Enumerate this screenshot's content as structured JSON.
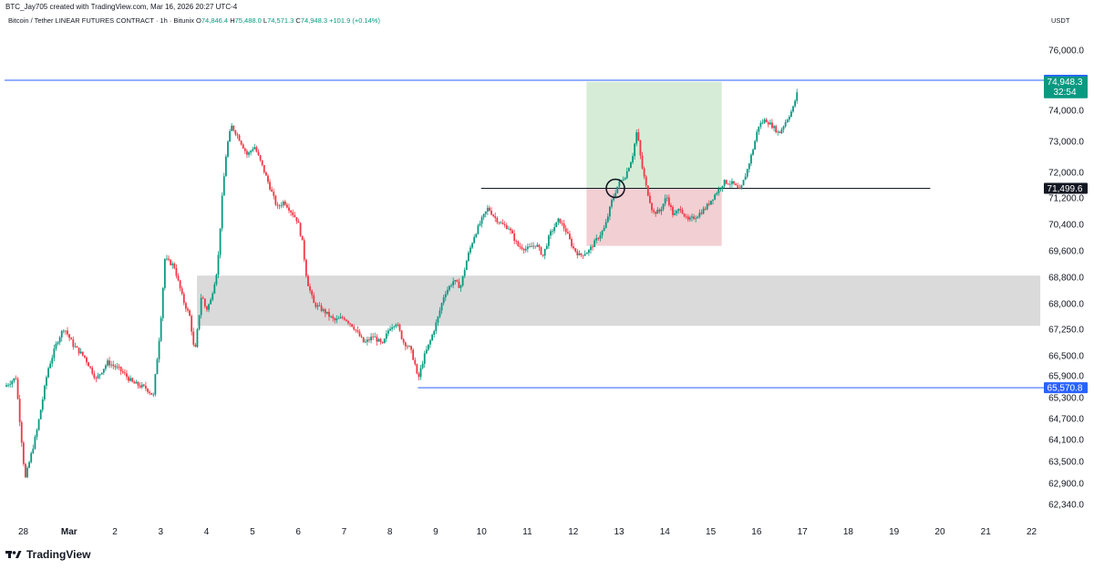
{
  "header": {
    "credit": "BTC_Jay705 created with TradingView.com, Mar 16, 2026 20:27 UTC-4",
    "symbol": "Bitcoin / Tether LINEAR FUTURES CONTRACT · 1h · Bitunix",
    "open_label": "O",
    "open": "74,846.4",
    "high_label": "H",
    "high": "75,488.0",
    "low_label": "L",
    "low": "74,571.3",
    "close_label": "C",
    "close": "74,948.3",
    "change": "+101.9 (+0.14%)",
    "currency": "USDT"
  },
  "brand": {
    "name": "TradingView",
    "icon": "tradingview-logo-icon"
  },
  "chart_data": {
    "type": "candlestick",
    "title": "",
    "xlabel": "",
    "ylabel": "USDT",
    "x_tick_labels": [
      "28",
      "Mar",
      "2",
      "3",
      "4",
      "5",
      "6",
      "7",
      "8",
      "9",
      "10",
      "11",
      "12",
      "13",
      "14",
      "15",
      "16",
      "17",
      "18",
      "19",
      "20",
      "21",
      "22"
    ],
    "y_tick_labels": [
      "76,000.0",
      "74,000.0",
      "73,000.0",
      "72,000.0",
      "71,200.0",
      "70,400.0",
      "69,600.0",
      "68,800.0",
      "68,000.0",
      "67,250.0",
      "66,500.0",
      "65,900.0",
      "65,300.0",
      "64,700.0",
      "64,100.0",
      "63,500.0",
      "62,900.0",
      "62,340.0"
    ],
    "price_levels": [
      {
        "label": "75,000.0",
        "value": 75000,
        "color": "#2962ff"
      },
      {
        "label": "71,499.6",
        "value": 71499.6,
        "color": "#131722"
      },
      {
        "label": "65,570.8",
        "value": 65570.8,
        "color": "#2962ff"
      }
    ],
    "last_price": {
      "label": "74,948.3",
      "countdown": "32:54",
      "color": "#089981"
    },
    "zones": [
      {
        "type": "demand",
        "from_day": 3.8,
        "to_day": 22.2,
        "low": 67350,
        "high": 68850,
        "color": "#dadada"
      },
      {
        "type": "take-profit",
        "from_day": 12.3,
        "to_day": 15.25,
        "low": 71499.6,
        "high": 74948,
        "color": "#d7ecd7"
      },
      {
        "type": "stop-loss",
        "from_day": 12.3,
        "to_day": 15.25,
        "low": 69750,
        "high": 71499.6,
        "color": "#f2cfd2"
      }
    ],
    "annotation": {
      "type": "circle",
      "day": 12.93,
      "value": 71499.6
    },
    "path": [
      [
        -0.4,
        65600
      ],
      [
        -0.15,
        65850
      ],
      [
        0.05,
        63000
      ],
      [
        0.3,
        64300
      ],
      [
        0.55,
        66100
      ],
      [
        0.75,
        66900
      ],
      [
        0.9,
        67300
      ],
      [
        1.1,
        66800
      ],
      [
        1.35,
        66450
      ],
      [
        1.6,
        65800
      ],
      [
        1.85,
        66300
      ],
      [
        2.1,
        66100
      ],
      [
        2.4,
        65700
      ],
      [
        2.7,
        65550
      ],
      [
        2.85,
        65350
      ],
      [
        3.0,
        67300
      ],
      [
        3.1,
        69350
      ],
      [
        3.3,
        69150
      ],
      [
        3.5,
        68100
      ],
      [
        3.65,
        67600
      ],
      [
        3.75,
        66500
      ],
      [
        3.9,
        68300
      ],
      [
        4.0,
        67800
      ],
      [
        4.1,
        68100
      ],
      [
        4.25,
        69100
      ],
      [
        4.35,
        71200
      ],
      [
        4.45,
        72800
      ],
      [
        4.55,
        73500
      ],
      [
        4.7,
        73150
      ],
      [
        4.9,
        72550
      ],
      [
        5.05,
        72850
      ],
      [
        5.2,
        72300
      ],
      [
        5.4,
        71500
      ],
      [
        5.55,
        70900
      ],
      [
        5.7,
        71100
      ],
      [
        5.85,
        70800
      ],
      [
        6.0,
        70500
      ],
      [
        6.1,
        69850
      ],
      [
        6.2,
        68700
      ],
      [
        6.35,
        68000
      ],
      [
        6.6,
        67750
      ],
      [
        6.8,
        67500
      ],
      [
        7.0,
        67600
      ],
      [
        7.2,
        67350
      ],
      [
        7.45,
        66850
      ],
      [
        7.65,
        67050
      ],
      [
        7.85,
        66800
      ],
      [
        8.0,
        67300
      ],
      [
        8.15,
        67450
      ],
      [
        8.3,
        66900
      ],
      [
        8.45,
        66700
      ],
      [
        8.55,
        66300
      ],
      [
        8.62,
        65750
      ],
      [
        8.75,
        66450
      ],
      [
        8.9,
        66950
      ],
      [
        9.05,
        67550
      ],
      [
        9.2,
        68300
      ],
      [
        9.4,
        68700
      ],
      [
        9.55,
        68500
      ],
      [
        9.7,
        69400
      ],
      [
        9.85,
        70050
      ],
      [
        10.0,
        70500
      ],
      [
        10.15,
        70900
      ],
      [
        10.3,
        70600
      ],
      [
        10.45,
        70400
      ],
      [
        10.6,
        70300
      ],
      [
        10.8,
        69750
      ],
      [
        11.0,
        69650
      ],
      [
        11.2,
        69800
      ],
      [
        11.35,
        69450
      ],
      [
        11.5,
        70100
      ],
      [
        11.7,
        70550
      ],
      [
        11.85,
        70200
      ],
      [
        12.0,
        69700
      ],
      [
        12.15,
        69450
      ],
      [
        12.35,
        69600
      ],
      [
        12.55,
        70000
      ],
      [
        12.7,
        70300
      ],
      [
        12.85,
        71100
      ],
      [
        13.0,
        71650
      ],
      [
        13.15,
        71900
      ],
      [
        13.3,
        72500
      ],
      [
        13.4,
        73350
      ],
      [
        13.5,
        72250
      ],
      [
        13.6,
        71550
      ],
      [
        13.75,
        70750
      ],
      [
        13.9,
        70800
      ],
      [
        14.05,
        71250
      ],
      [
        14.2,
        70650
      ],
      [
        14.35,
        70900
      ],
      [
        14.5,
        70500
      ],
      [
        14.7,
        70650
      ],
      [
        14.9,
        70900
      ],
      [
        15.1,
        71300
      ],
      [
        15.3,
        71700
      ],
      [
        15.5,
        71650
      ],
      [
        15.65,
        71400
      ],
      [
        15.8,
        72050
      ],
      [
        15.95,
        72850
      ],
      [
        16.05,
        73500
      ],
      [
        16.2,
        73700
      ],
      [
        16.35,
        73500
      ],
      [
        16.5,
        73250
      ],
      [
        16.65,
        73650
      ],
      [
        16.8,
        74050
      ],
      [
        16.9,
        74600
      ],
      [
        16.93,
        74948
      ]
    ]
  }
}
